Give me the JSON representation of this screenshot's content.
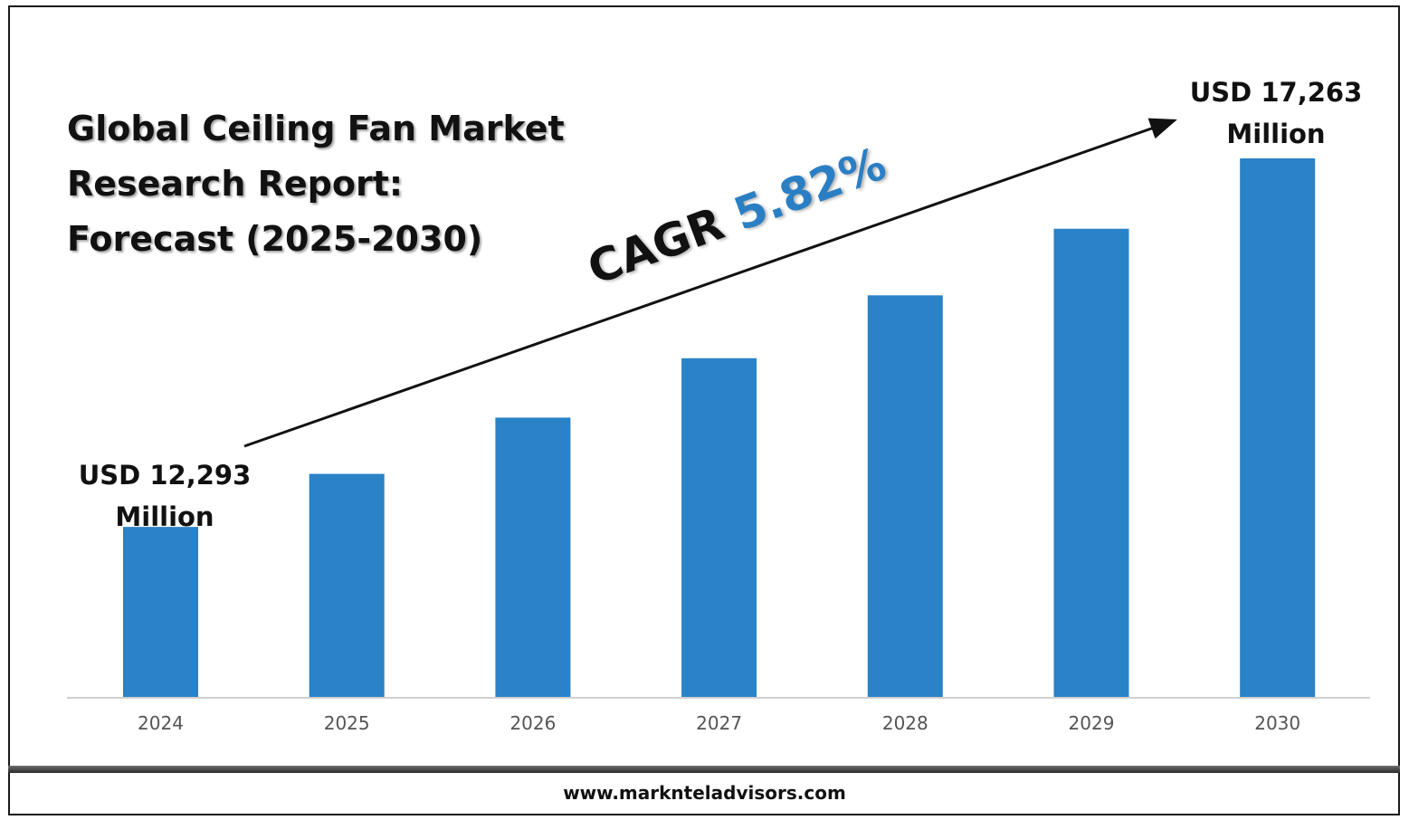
{
  "chart_data": {
    "type": "bar",
    "title_lines": [
      "Global Ceiling Fan Market",
      "Research Report:",
      "Forecast (2025-2030)"
    ],
    "categories": [
      "2024",
      "2025",
      "2026",
      "2027",
      "2028",
      "2029",
      "2030"
    ],
    "values": [
      12293,
      13008,
      13767,
      14568,
      15416,
      16314,
      17263
    ],
    "unit": "USD Million",
    "bar_color": "#2a82c7",
    "ylim": [
      10000,
      18000
    ],
    "grid": false,
    "annotations": {
      "cagr_label": "CAGR",
      "cagr_value": "5.82%",
      "start": {
        "line1": "USD 12,293",
        "line2": "Million"
      },
      "end": {
        "line1": "USD 17,263",
        "line2": "Million"
      }
    }
  },
  "footer": {
    "website": "www.marknteladvisors.com"
  }
}
